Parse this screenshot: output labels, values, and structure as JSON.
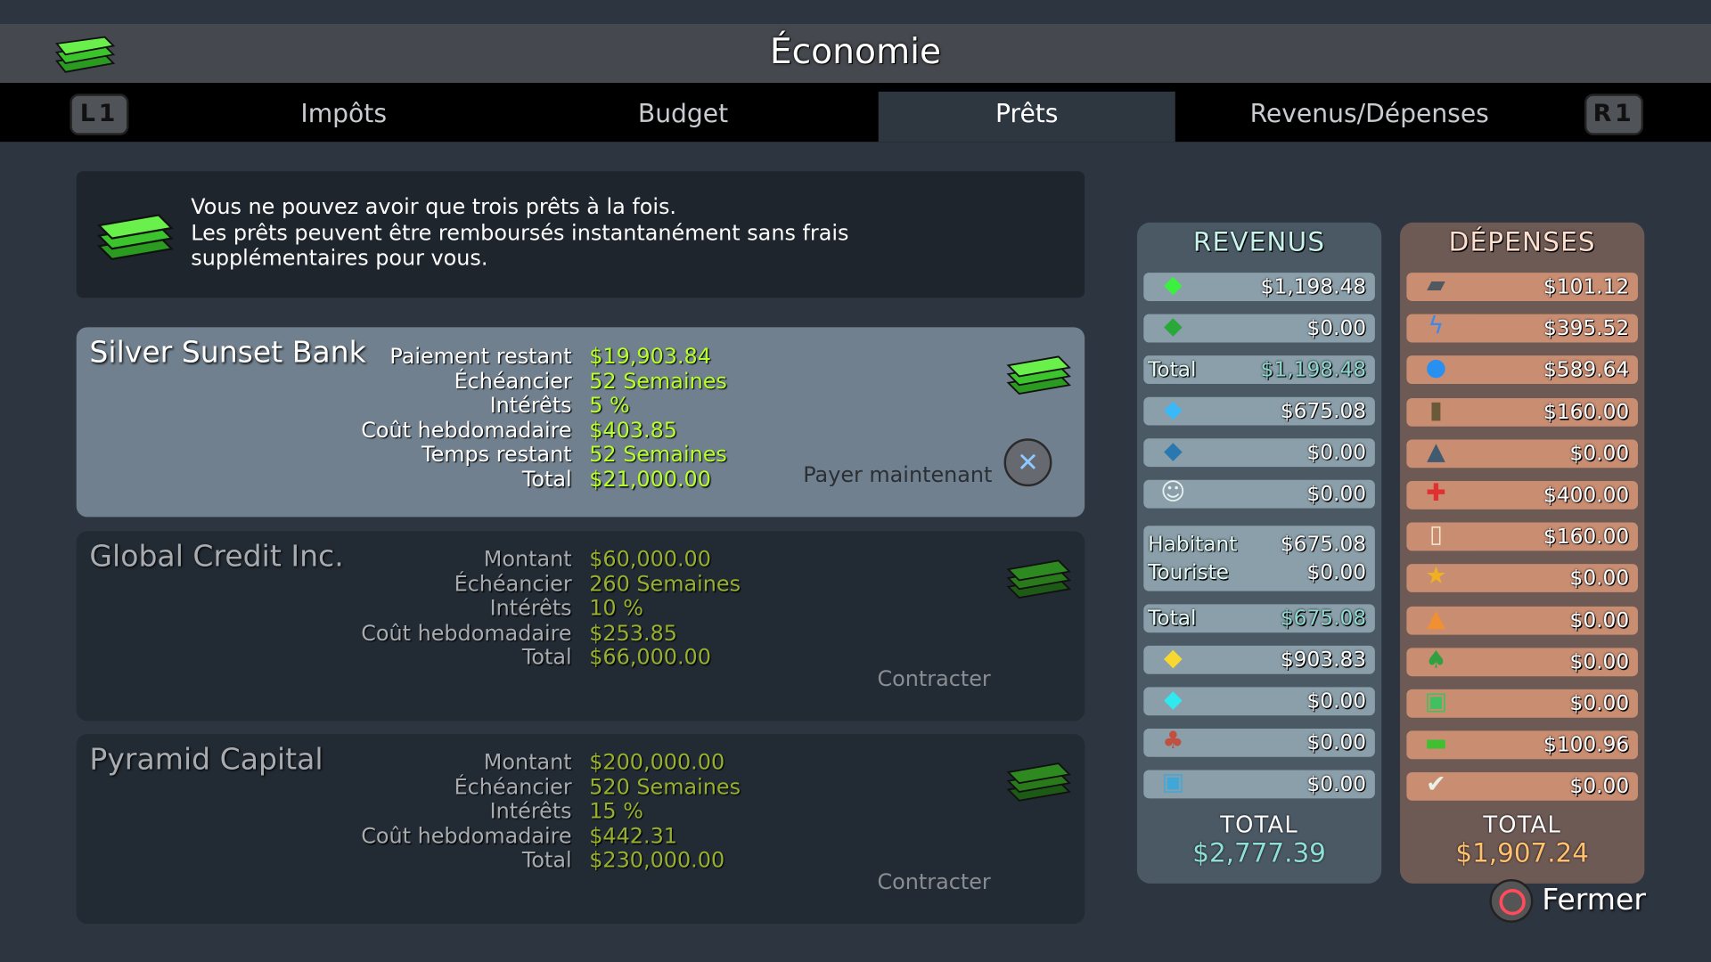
{
  "header": {
    "title": "Économie",
    "icon": "cash-stack-icon"
  },
  "tabs": {
    "left_shoulder": "L1",
    "right_shoulder": "R1",
    "items": [
      {
        "label": "Impôts"
      },
      {
        "label": "Budget"
      },
      {
        "label": "Prêts",
        "active": true
      },
      {
        "label": "Revenus/Dépenses"
      }
    ]
  },
  "info": {
    "line1": "Vous ne pouvez avoir que trois prêts à la fois.",
    "line2": "Les prêts peuvent être remboursés instantanément sans frais",
    "line3": "supplémentaires pour vous."
  },
  "loans": [
    {
      "bank": "Silver Sunset Bank",
      "active": true,
      "fields": [
        {
          "label": "Paiement restant",
          "value": "$19,903.84"
        },
        {
          "label": "Échéancier",
          "value": "52 Semaines"
        },
        {
          "label": "Intérêts",
          "value": "5 %"
        },
        {
          "label": "Coût hebdomadaire",
          "value": "$403.85"
        },
        {
          "label": "Temps restant",
          "value": "52 Semaines"
        },
        {
          "label": "Total",
          "value": "$21,000.00"
        }
      ],
      "action": "Payer maintenant"
    },
    {
      "bank": "Global Credit Inc.",
      "active": false,
      "fields": [
        {
          "label": "Montant",
          "value": "$60,000.00"
        },
        {
          "label": "Échéancier",
          "value": "260 Semaines"
        },
        {
          "label": "Intérêts",
          "value": "10 %"
        },
        {
          "label": "Coût hebdomadaire",
          "value": "$253.85"
        },
        {
          "label": "Total",
          "value": "$66,000.00"
        }
      ],
      "action": "Contracter"
    },
    {
      "bank": "Pyramid Capital",
      "active": false,
      "fields": [
        {
          "label": "Montant",
          "value": "$200,000.00"
        },
        {
          "label": "Échéancier",
          "value": "520 Semaines"
        },
        {
          "label": "Intérêts",
          "value": "15 %"
        },
        {
          "label": "Coût hebdomadaire",
          "value": "$442.31"
        },
        {
          "label": "Total",
          "value": "$230,000.00"
        }
      ],
      "action": "Contracter"
    }
  ],
  "revenus": {
    "title": "REVENUS",
    "rows": [
      {
        "icon": "residential-low-icon",
        "value": "$1,198.48"
      },
      {
        "icon": "residential-high-icon",
        "value": "$0.00"
      },
      {
        "label": "Total",
        "value": "$1,198.48",
        "total": true
      },
      {
        "icon": "commercial-low-icon",
        "value": "$675.08"
      },
      {
        "icon": "commercial-high-icon",
        "value": "$0.00"
      },
      {
        "icon": "leisure-tourism-icon",
        "value": "$0.00"
      }
    ],
    "split": [
      {
        "label": "Habitant",
        "value": "$675.08"
      },
      {
        "label": "Touriste",
        "value": "$0.00"
      }
    ],
    "rows2": [
      {
        "label": "Total",
        "value": "$675.08",
        "total": true
      },
      {
        "icon": "industrial-icon",
        "value": "$903.83"
      },
      {
        "icon": "office-icon",
        "value": "$0.00"
      },
      {
        "icon": "specialized-industry-icon",
        "value": "$0.00"
      },
      {
        "icon": "public-transport-icon",
        "value": "$0.00"
      }
    ],
    "total_label": "TOTAL",
    "total": "$2,777.39",
    "color": "#8fe0d4"
  },
  "depenses": {
    "title": "DÉPENSES",
    "rows": [
      {
        "icon": "road-icon",
        "value": "$101.12"
      },
      {
        "icon": "electricity-icon",
        "value": "$395.52"
      },
      {
        "icon": "water-icon",
        "value": "$589.64"
      },
      {
        "icon": "garbage-icon",
        "value": "$160.00"
      },
      {
        "icon": "deathcare-icon",
        "value": "$0.00"
      },
      {
        "icon": "healthcare-icon",
        "value": "$400.00"
      },
      {
        "icon": "education-icon",
        "value": "$160.00"
      },
      {
        "icon": "police-icon",
        "value": "$0.00"
      },
      {
        "icon": "fire-icon",
        "value": "$0.00"
      },
      {
        "icon": "parks-icon",
        "value": "$0.00"
      },
      {
        "icon": "transport-icon",
        "value": "$0.00"
      },
      {
        "icon": "loans-icon",
        "value": "$100.96"
      },
      {
        "icon": "policies-icon",
        "value": "$0.00"
      }
    ],
    "total_label": "TOTAL",
    "total": "$1,907.24",
    "color": "#ffc070"
  },
  "close": {
    "label": "Fermer",
    "button_icon": "circle-button-icon"
  }
}
